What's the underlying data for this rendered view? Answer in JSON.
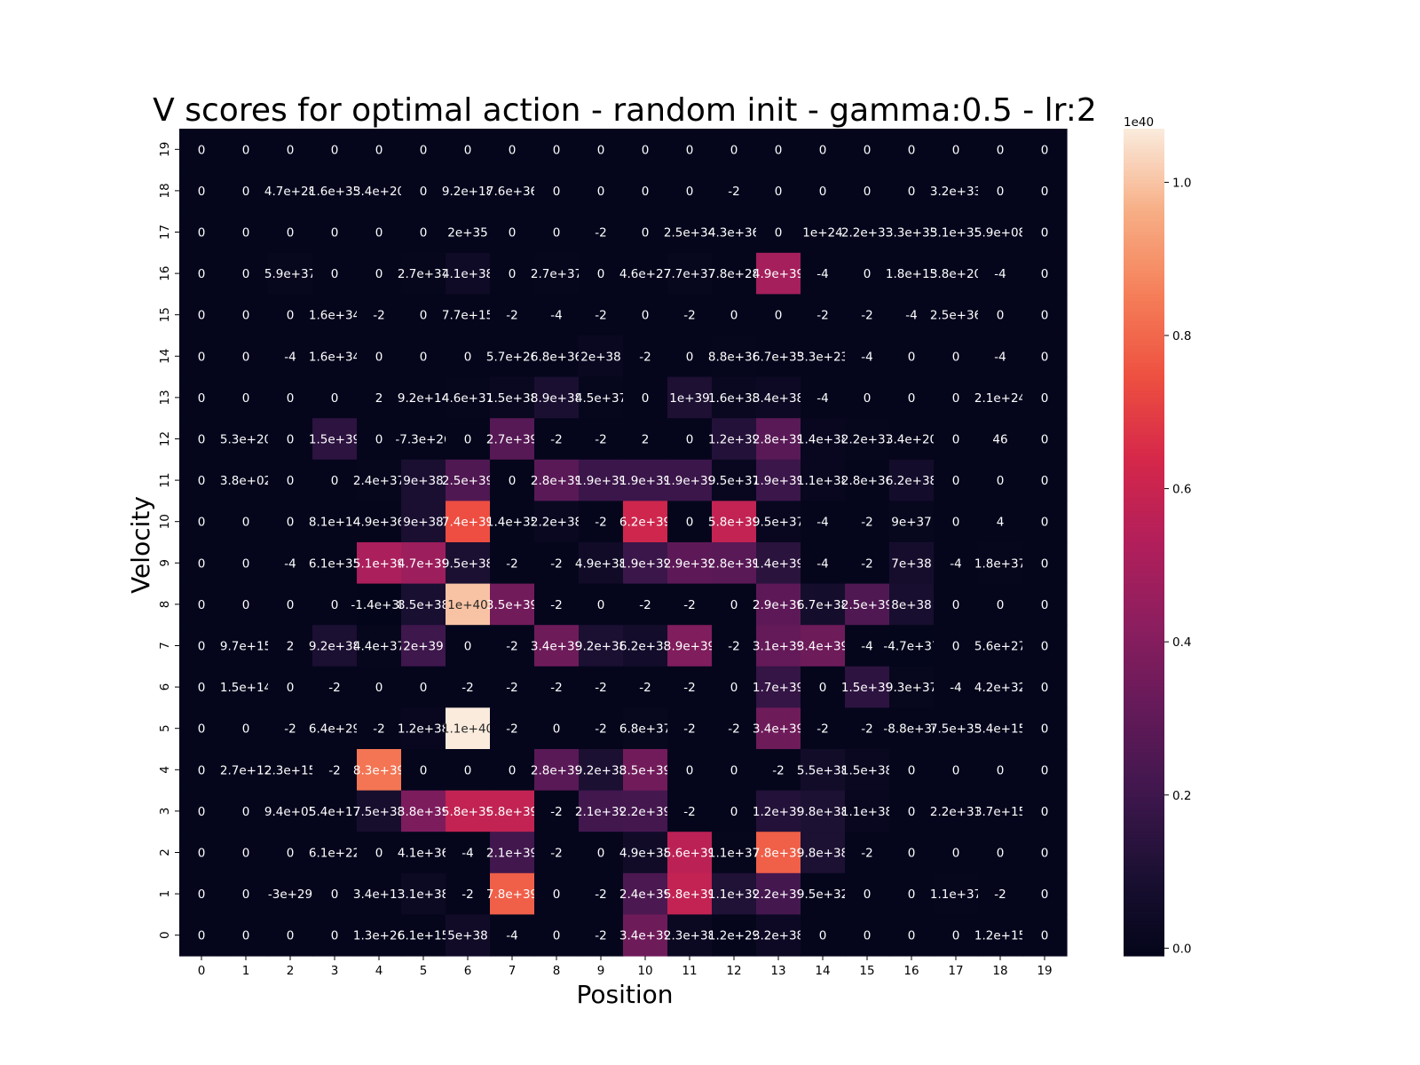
{
  "chart_data": {
    "type": "heatmap",
    "title": "V scores for optimal action - random init - gamma:0.5 - lr:2",
    "xlabel": "Position",
    "ylabel": "Velocity",
    "x_categories": [
      "0",
      "1",
      "2",
      "3",
      "4",
      "5",
      "6",
      "7",
      "8",
      "9",
      "10",
      "11",
      "12",
      "13",
      "14",
      "15",
      "16",
      "17",
      "18",
      "19"
    ],
    "y_categories": [
      "19",
      "18",
      "17",
      "16",
      "15",
      "14",
      "13",
      "12",
      "11",
      "10",
      "9",
      "8",
      "7",
      "6",
      "5",
      "4",
      "3",
      "2",
      "1",
      "0"
    ],
    "colorbar": {
      "offset_label": "1e40",
      "ticks": [
        "0.0",
        "0.2",
        "0.4",
        "0.6",
        "0.8",
        "1.0"
      ],
      "tick_values": [
        0.0,
        0.2,
        0.4,
        0.6,
        0.8,
        1.0
      ],
      "vmin": -0.01,
      "vmax": 1.07,
      "colormap": "rocket"
    },
    "cell_labels": [
      [
        "0",
        "0",
        "0",
        "0",
        "0",
        "0",
        "0",
        "0",
        "0",
        "0",
        "0",
        "0",
        "0",
        "0",
        "0",
        "0",
        "0",
        "0",
        "0",
        "0"
      ],
      [
        "0",
        "0",
        "4.7e+28",
        "1.6e+35",
        "3.4e+20",
        "0",
        "9.2e+18",
        "7.6e+36",
        "0",
        "0",
        "0",
        "0",
        "-2",
        "0",
        "0",
        "0",
        "0",
        "3.2e+33",
        "0",
        "0"
      ],
      [
        "0",
        "0",
        "0",
        "0",
        "0",
        "0",
        "2e+35",
        "0",
        "0",
        "-2",
        "0",
        "2.5e+34",
        "4.3e+36",
        "0",
        "1e+24",
        "2.2e+33",
        "3.3e+35",
        "3.1e+35",
        "5.9e+08",
        "0"
      ],
      [
        "0",
        "0",
        "5.9e+37",
        "0",
        "0",
        "2.7e+37",
        "4.1e+38",
        "0",
        "2.7e+37",
        "0",
        "4.6e+27",
        "7.7e+37",
        "7.8e+28",
        "4.9e+39",
        "-4",
        "0",
        "1.8e+15",
        "3.8e+20",
        "-4",
        "0"
      ],
      [
        "0",
        "0",
        "0",
        "1.6e+34",
        "-2",
        "0",
        "7.7e+15",
        "-2",
        "-4",
        "-2",
        "0",
        "-2",
        "0",
        "0",
        "-2",
        "-2",
        "-4",
        "2.5e+36",
        "0",
        "0"
      ],
      [
        "0",
        "0",
        "-4",
        "1.6e+34",
        "0",
        "0",
        "0",
        "5.7e+26",
        "6.8e+36",
        "2e+38",
        "-2",
        "0",
        "8.8e+36",
        "6.7e+35",
        "3.3e+23",
        "-4",
        "0",
        "0",
        "-4",
        "0"
      ],
      [
        "0",
        "0",
        "0",
        "0",
        "2",
        "9.2e+14",
        "4.6e+37",
        "1.5e+38",
        "8.9e+38",
        "4.5e+37",
        "0",
        "1e+39",
        "1.6e+38",
        "3.4e+38",
        "-4",
        "0",
        "0",
        "0",
        "2.1e+24",
        "0"
      ],
      [
        "0",
        "5.3e+20",
        "0",
        "1.5e+39",
        "0",
        "-7.3e+26",
        "0",
        "2.7e+39",
        "-2",
        "-2",
        "2",
        "0",
        "1.2e+39",
        "2.8e+39",
        "1.4e+38",
        "2.2e+37",
        "3.4e+20",
        "0",
        "46",
        "0"
      ],
      [
        "0",
        "3.8e+02",
        "0",
        "0",
        "2.4e+37",
        "9e+38",
        "2.5e+39",
        "0",
        "2.8e+39",
        "1.9e+39",
        "1.9e+39",
        "1.9e+39",
        "9.5e+37",
        "1.9e+39",
        "1.1e+38",
        "2.8e+36",
        "6.2e+38",
        "0",
        "0",
        "0"
      ],
      [
        "0",
        "0",
        "0",
        "8.1e+14",
        "4.9e+36",
        "9e+38",
        "7.4e+39",
        "1.4e+35",
        "2.2e+38",
        "-2",
        "6.2e+39",
        "0",
        "5.8e+39",
        "9.5e+37",
        "-4",
        "-2",
        "9e+37",
        "0",
        "4",
        "0"
      ],
      [
        "0",
        "0",
        "-4",
        "6.1e+35",
        "5.1e+39",
        "4.7e+39",
        "9.5e+38",
        "-2",
        "-2",
        "4.9e+38",
        "1.9e+39",
        "2.9e+39",
        "2.8e+39",
        "1.4e+39",
        "-4",
        "-2",
        "7e+38",
        "-4",
        "1.8e+37",
        "0"
      ],
      [
        "0",
        "0",
        "0",
        "0",
        "-1.4e+38",
        "8.5e+38",
        "1e+40",
        "3.5e+39",
        "-2",
        "0",
        "-2",
        "-2",
        "0",
        "2.9e+39",
        "6.7e+38",
        "2.5e+39",
        "8e+38",
        "0",
        "0",
        "0"
      ],
      [
        "0",
        "9.7e+15",
        "2",
        "9.2e+38",
        "4.4e+37",
        "2e+39",
        "0",
        "-2",
        "3.4e+39",
        "9.2e+38",
        "6.2e+38",
        "3.9e+39",
        "-2",
        "3.1e+39",
        "3.4e+39",
        "-4",
        "-4.7e+37",
        "0",
        "5.6e+27",
        "0"
      ],
      [
        "0",
        "1.5e+14",
        "0",
        "-2",
        "0",
        "0",
        "-2",
        "-2",
        "-2",
        "-2",
        "-2",
        "-2",
        "0",
        "1.7e+39",
        "0",
        "1.5e+39",
        "9.3e+37",
        "-4",
        "4.2e+32",
        "0"
      ],
      [
        "0",
        "0",
        "-2",
        "6.4e+29",
        "-2",
        "1.2e+38",
        "1.1e+40",
        "-2",
        "0",
        "-2",
        "6.8e+37",
        "-2",
        "-2",
        "3.4e+39",
        "-2",
        "-2",
        "-8.8e+36",
        "7.5e+35",
        "3.4e+15",
        "0"
      ],
      [
        "0",
        "2.7e+12",
        "2.3e+15",
        "-2",
        "8.3e+39",
        "0",
        "0",
        "0",
        "2.8e+39",
        "9.2e+38",
        "3.5e+39",
        "0",
        "0",
        "-2",
        "5.5e+38",
        "1.5e+38",
        "0",
        "0",
        "0",
        "0"
      ],
      [
        "0",
        "0",
        "9.4e+05",
        "5.4e+17",
        "7.5e+38",
        "3.8e+39",
        "5.8e+39",
        "5.8e+39",
        "-2",
        "2.1e+39",
        "2.2e+39",
        "-2",
        "0",
        "1.2e+39",
        "9.8e+38",
        "1.1e+38",
        "0",
        "2.2e+31",
        "3.7e+15",
        "0"
      ],
      [
        "0",
        "0",
        "0",
        "6.1e+22",
        "0",
        "4.1e+36",
        "-4",
        "2.1e+39",
        "-2",
        "0",
        "4.9e+38",
        "5.6e+39",
        "1.1e+37",
        "7.8e+39",
        "9.8e+38",
        "-2",
        "0",
        "0",
        "0",
        "0"
      ],
      [
        "0",
        "0",
        "-3e+29",
        "0",
        "3.4e+13",
        "3.1e+38",
        "-2",
        "7.8e+39",
        "0",
        "-2",
        "2.4e+39",
        "5.8e+39",
        "1.1e+39",
        "2.2e+39",
        "9.5e+32",
        "0",
        "0",
        "1.1e+37",
        "-2",
        "0"
      ],
      [
        "0",
        "0",
        "0",
        "0",
        "1.3e+26",
        "6.1e+15",
        "5e+38",
        "-4",
        "0",
        "-2",
        "3.4e+39",
        "2.3e+38",
        "1.2e+29",
        "3.2e+38",
        "0",
        "0",
        "0",
        "0",
        "1.2e+15",
        "0"
      ]
    ]
  }
}
